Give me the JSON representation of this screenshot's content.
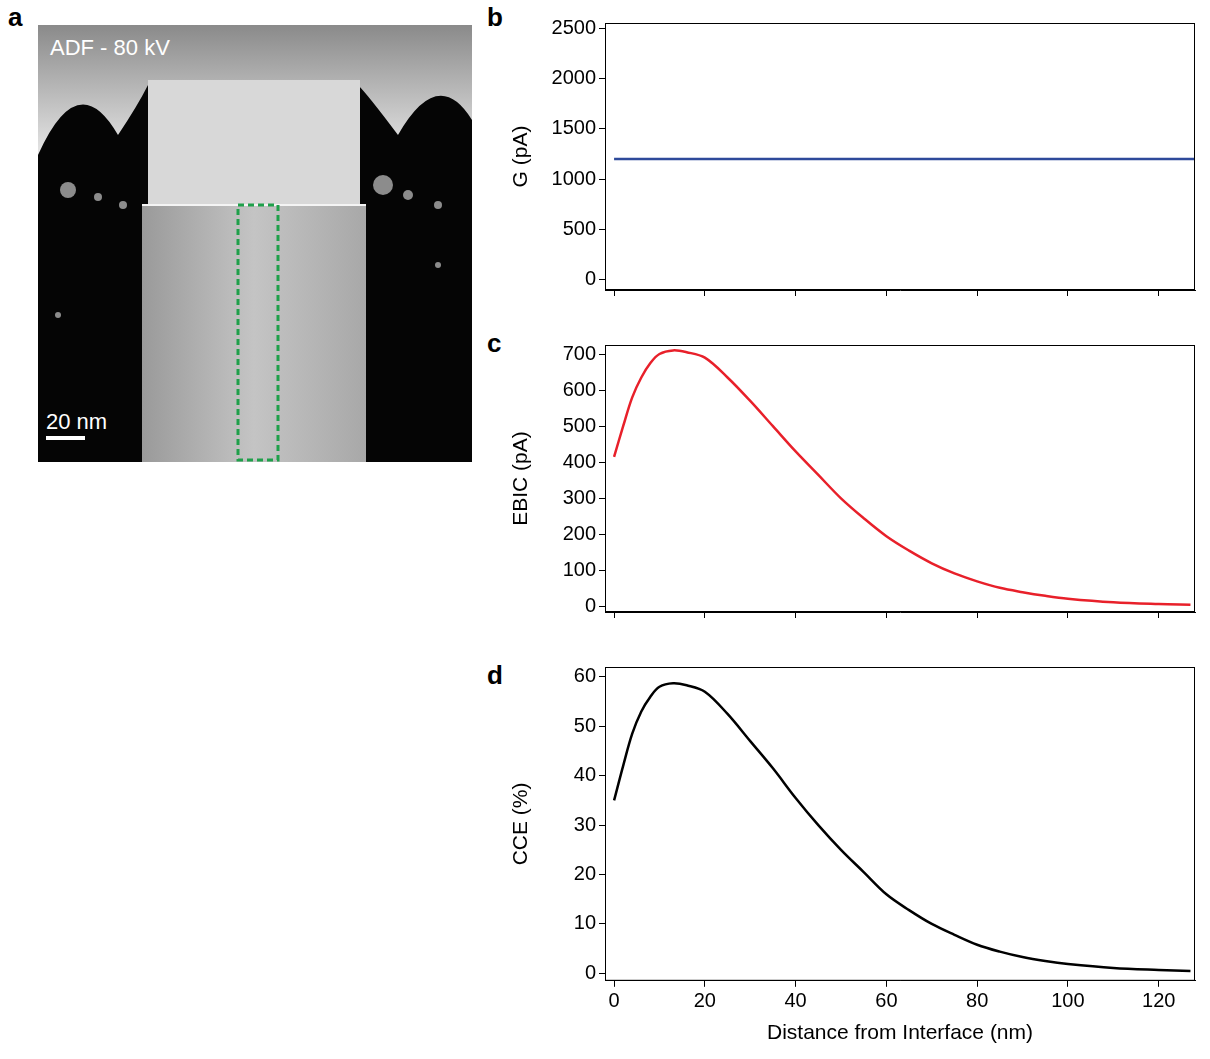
{
  "image_panel": {
    "panel": "a",
    "label": "ADF - 80 kV",
    "scale_bar": "20 nm"
  },
  "chart_data": [
    {
      "panel": "b",
      "type": "line",
      "y_label": "G (pA)",
      "color": "#2e4a9a",
      "x": [
        0,
        128
      ],
      "values": [
        1200,
        1200
      ],
      "xlim": [
        -2,
        128
      ],
      "xticks": [
        0,
        20,
        40,
        60,
        80,
        100,
        120
      ],
      "ylim": [
        -100,
        2550
      ],
      "yticks": [
        0,
        500,
        1000,
        1500,
        2000,
        2500
      ],
      "grid": false,
      "tick_labels": "y"
    },
    {
      "panel": "c",
      "type": "line",
      "y_label": "EBIC (pA)",
      "color": "#e8202a",
      "x": [
        0,
        2,
        4,
        6,
        8,
        10,
        13,
        16,
        20,
        25,
        30,
        35,
        40,
        45,
        50,
        55,
        60,
        65,
        70,
        75,
        80,
        85,
        90,
        95,
        100,
        110,
        120,
        127
      ],
      "values": [
        415,
        500,
        580,
        635,
        675,
        700,
        710,
        705,
        690,
        635,
        570,
        500,
        430,
        365,
        300,
        245,
        195,
        155,
        120,
        92,
        70,
        52,
        40,
        30,
        22,
        12,
        7,
        5
      ],
      "xlim": [
        -2,
        128
      ],
      "xticks": [
        0,
        20,
        40,
        60,
        80,
        100,
        120
      ],
      "ylim": [
        -15,
        725
      ],
      "yticks": [
        0,
        100,
        200,
        300,
        400,
        500,
        600,
        700
      ],
      "grid": false,
      "tick_labels": "y"
    },
    {
      "panel": "d",
      "type": "line",
      "y_label": "CCE (%)",
      "x_label": "Distance from Interface (nm)",
      "color": "#000000",
      "x": [
        0,
        2,
        4,
        6,
        8,
        10,
        13,
        16,
        20,
        25,
        30,
        35,
        40,
        45,
        50,
        55,
        60,
        65,
        70,
        75,
        80,
        85,
        90,
        95,
        100,
        110,
        120,
        127
      ],
      "values": [
        35,
        42,
        48.5,
        53,
        56,
        58,
        58.7,
        58.3,
        57,
        52.5,
        47,
        41.5,
        35.5,
        30,
        25,
        20.5,
        16,
        12.8,
        10,
        7.8,
        5.8,
        4.4,
        3.3,
        2.5,
        1.9,
        1.1,
        0.7,
        0.5
      ],
      "xlim": [
        -2,
        128
      ],
      "xticks": [
        0,
        20,
        40,
        60,
        80,
        100,
        120
      ],
      "ylim": [
        -1.5,
        62
      ],
      "yticks": [
        0,
        10,
        20,
        30,
        40,
        50,
        60
      ],
      "grid": false
    }
  ]
}
